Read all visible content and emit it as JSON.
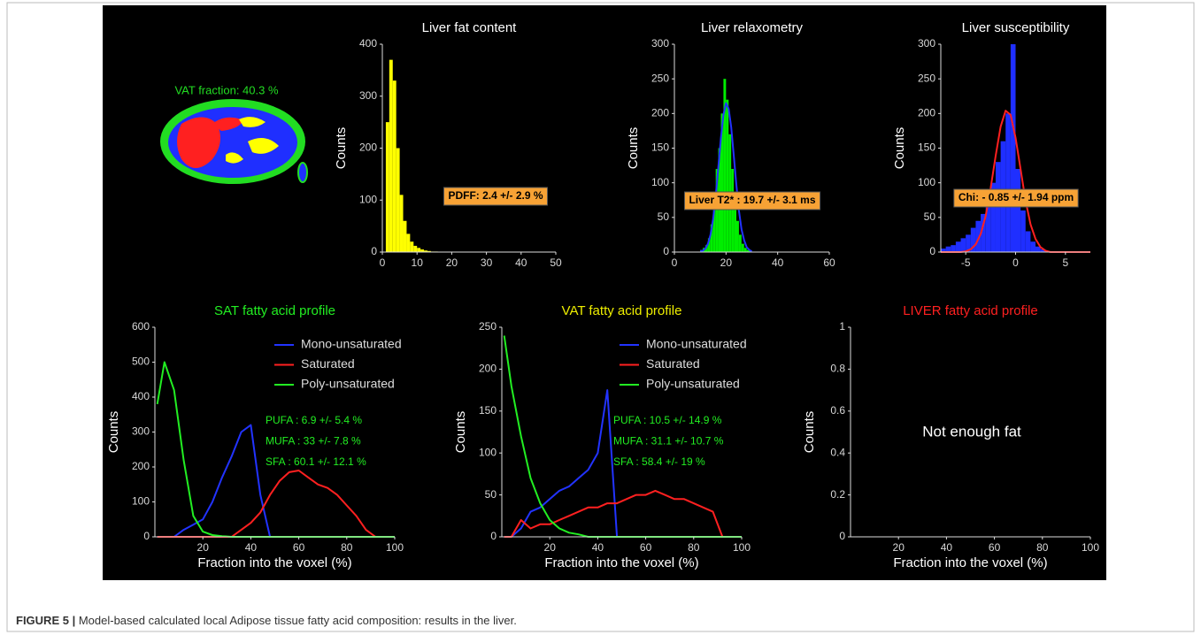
{
  "vat_image": {
    "label": "VAT fraction: 40.3 %"
  },
  "caption": {
    "figure": "FIGURE 5 |",
    "text": "Model-based calculated local Adipose tissue fatty acid composition: results in the liver."
  },
  "chart_data": [
    {
      "type": "histogram",
      "title": "Liver fat content",
      "title_color": "#ffffff",
      "ylabel": "Counts",
      "annotation": "PDFF: 2.4 +/- 2.9 %",
      "xlim": [
        0,
        50
      ],
      "xticks": [
        0,
        10,
        20,
        30,
        40,
        50
      ],
      "ylim": [
        0,
        400
      ],
      "yticks": [
        0,
        100,
        200,
        300,
        400
      ],
      "series": [
        {
          "type": "histogram",
          "color": "#ffff00",
          "bins": [
            1,
            2,
            3,
            4,
            5,
            6,
            7,
            8,
            9,
            10,
            11,
            12,
            13,
            14,
            15,
            16
          ],
          "values": [
            250,
            370,
            330,
            200,
            110,
            60,
            35,
            20,
            12,
            8,
            5,
            3,
            2,
            1,
            1
          ]
        }
      ]
    },
    {
      "type": "histogram",
      "title": "Liver relaxometry",
      "title_color": "#ffffff",
      "ylabel": "Counts",
      "annotation": "Liver T2* : 19.7 +/- 3.1 ms",
      "xlim": [
        0,
        60
      ],
      "xticks": [
        0,
        20,
        40,
        60
      ],
      "ylim": [
        0,
        300
      ],
      "yticks": [
        0,
        50,
        100,
        150,
        200,
        250,
        300
      ],
      "series": [
        {
          "type": "histogram",
          "color": "#00ee00",
          "bins": [
            10,
            11,
            12,
            13,
            14,
            15,
            16,
            17,
            18,
            19,
            20,
            21,
            22,
            23,
            24,
            25,
            26,
            27,
            28,
            29,
            30
          ],
          "values": [
            3,
            6,
            10,
            20,
            40,
            70,
            120,
            150,
            200,
            250,
            220,
            170,
            120,
            80,
            45,
            25,
            12,
            6,
            3,
            2
          ]
        },
        {
          "type": "line",
          "color": "#2233ff",
          "x": [
            10,
            11,
            12,
            13,
            14,
            15,
            16,
            17,
            18,
            19,
            20,
            21,
            22,
            23,
            24,
            25,
            26,
            27,
            28,
            29,
            30
          ],
          "values": [
            1,
            2,
            5,
            12,
            25,
            48,
            81,
            122,
            164,
            198,
            215,
            207,
            180,
            139,
            97,
            60,
            33,
            17,
            7,
            3,
            1
          ]
        }
      ]
    },
    {
      "type": "histogram",
      "title": "Liver susceptibility",
      "title_color": "#ffffff",
      "ylabel": "Counts",
      "annotation": "Chi: - 0.85 +/- 1.94 ppm",
      "xlim": [
        -7.5,
        7.5
      ],
      "xticks": [
        -5,
        0,
        5
      ],
      "ylim": [
        0,
        300
      ],
      "yticks": [
        0,
        50,
        100,
        150,
        200,
        250,
        300
      ],
      "series": [
        {
          "type": "histogram",
          "color": "#1f2fff",
          "bins": [
            -7.5,
            -7,
            -6.5,
            -6,
            -5.5,
            -5,
            -4.5,
            -4,
            -3.5,
            -3,
            -2.5,
            -2,
            -1.5,
            -1,
            -0.5,
            0,
            0.5,
            1,
            1.5,
            2,
            2.5,
            3
          ],
          "values": [
            5,
            8,
            10,
            15,
            20,
            25,
            35,
            45,
            55,
            70,
            100,
            130,
            160,
            200,
            300,
            120,
            60,
            30,
            15,
            8,
            4
          ]
        },
        {
          "type": "line",
          "color": "#ff2020",
          "x": [
            -7.5,
            -7,
            -6.5,
            -6,
            -5.5,
            -5,
            -4.5,
            -4,
            -3.5,
            -3,
            -2.5,
            -2,
            -1.5,
            -1,
            -0.5,
            0,
            0.5,
            1,
            1.5,
            2,
            2.5,
            3,
            3.5,
            4,
            4.5,
            5,
            5.5,
            6,
            6.5,
            7,
            7.5
          ],
          "values": [
            0,
            0,
            0,
            0,
            0,
            1,
            4,
            11,
            26,
            52,
            92,
            139,
            181,
            204,
            198,
            165,
            120,
            74,
            40,
            19,
            7,
            2,
            0,
            0,
            0,
            0,
            0,
            0,
            0,
            0,
            0
          ]
        }
      ]
    },
    {
      "type": "line",
      "title": "SAT fatty acid profile",
      "title_color": "#22ee22",
      "xlabel": "Fraction into the voxel (%)",
      "ylabel": "Counts",
      "annotations": [
        "PUFA : 6.9 +/- 5.4 %",
        "MUFA : 33 +/- 7.8 %",
        "SFA : 60.1 +/- 12.1 %"
      ],
      "annotation_color": "#22ee22",
      "xlim": [
        0,
        100
      ],
      "xticks": [
        20,
        40,
        60,
        80,
        100
      ],
      "ylim": [
        0,
        600
      ],
      "yticks": [
        0,
        100,
        200,
        300,
        400,
        500,
        600
      ],
      "x": [
        1,
        4,
        8,
        12,
        16,
        20,
        24,
        28,
        32,
        36,
        40,
        44,
        48,
        52,
        56,
        60,
        64,
        68,
        72,
        76,
        80,
        84,
        88,
        92,
        96,
        100
      ],
      "series": [
        {
          "name": "Mono-unsaturated",
          "color": "#2233ff",
          "values": [
            0,
            0,
            0,
            20,
            35,
            50,
            100,
            170,
            230,
            300,
            320,
            120,
            0,
            0,
            0,
            0,
            0,
            0,
            0,
            0,
            0,
            0,
            0,
            0,
            0,
            0
          ]
        },
        {
          "name": "Saturated",
          "color": "#ff2020",
          "values": [
            0,
            0,
            0,
            0,
            0,
            0,
            0,
            0,
            0,
            20,
            40,
            70,
            120,
            160,
            185,
            190,
            170,
            150,
            140,
            120,
            90,
            60,
            20,
            0,
            0,
            0
          ]
        },
        {
          "name": "Poly-unsaturated",
          "color": "#22ee22",
          "values": [
            380,
            500,
            420,
            220,
            60,
            15,
            5,
            2,
            0,
            0,
            0,
            0,
            0,
            0,
            0,
            0,
            0,
            0,
            0,
            0,
            0,
            0,
            0,
            0,
            0,
            0
          ]
        }
      ]
    },
    {
      "type": "line",
      "title": "VAT fatty acid profile",
      "title_color": "#eeee00",
      "xlabel": "Fraction into the voxel (%)",
      "ylabel": "Counts",
      "annotations": [
        "PUFA : 10.5 +/- 14.9 %",
        "MUFA : 31.1 +/- 10.7 %",
        "SFA : 58.4 +/- 19 %"
      ],
      "annotation_color": "#22ee22",
      "xlim": [
        0,
        100
      ],
      "xticks": [
        20,
        40,
        60,
        80,
        100
      ],
      "ylim": [
        0,
        250
      ],
      "yticks": [
        0,
        50,
        100,
        150,
        200,
        250
      ],
      "x": [
        1,
        4,
        8,
        12,
        16,
        20,
        24,
        28,
        32,
        36,
        40,
        44,
        48,
        52,
        56,
        60,
        64,
        68,
        72,
        76,
        80,
        84,
        88,
        92,
        96,
        100
      ],
      "series": [
        {
          "name": "Mono-unsaturated",
          "color": "#2233ff",
          "values": [
            0,
            0,
            10,
            30,
            35,
            45,
            55,
            60,
            70,
            80,
            100,
            175,
            0,
            0,
            0,
            0,
            0,
            0,
            0,
            0,
            0,
            0,
            0,
            0,
            0,
            0
          ]
        },
        {
          "name": "Saturated",
          "color": "#ff2020",
          "values": [
            0,
            0,
            20,
            10,
            15,
            15,
            20,
            25,
            30,
            35,
            35,
            40,
            40,
            45,
            50,
            50,
            55,
            50,
            45,
            45,
            40,
            35,
            30,
            0,
            0,
            0
          ]
        },
        {
          "name": "Poly-unsaturated",
          "color": "#22ee22",
          "values": [
            240,
            180,
            120,
            70,
            40,
            20,
            10,
            5,
            3,
            0,
            0,
            0,
            0,
            0,
            0,
            0,
            0,
            0,
            0,
            0,
            0,
            0,
            0,
            0,
            0,
            0
          ]
        }
      ]
    },
    {
      "type": "line",
      "title": "LIVER fatty acid profile",
      "title_color": "#ff2020",
      "xlabel": "Fraction into the voxel (%)",
      "ylabel": "Counts",
      "note": "Not enough fat",
      "xlim": [
        0,
        100
      ],
      "xticks": [
        20,
        40,
        60,
        80,
        100
      ],
      "ylim": [
        0,
        1
      ],
      "yticks": [
        0,
        0.2,
        0.4,
        0.6,
        0.8,
        1
      ],
      "series": []
    }
  ]
}
